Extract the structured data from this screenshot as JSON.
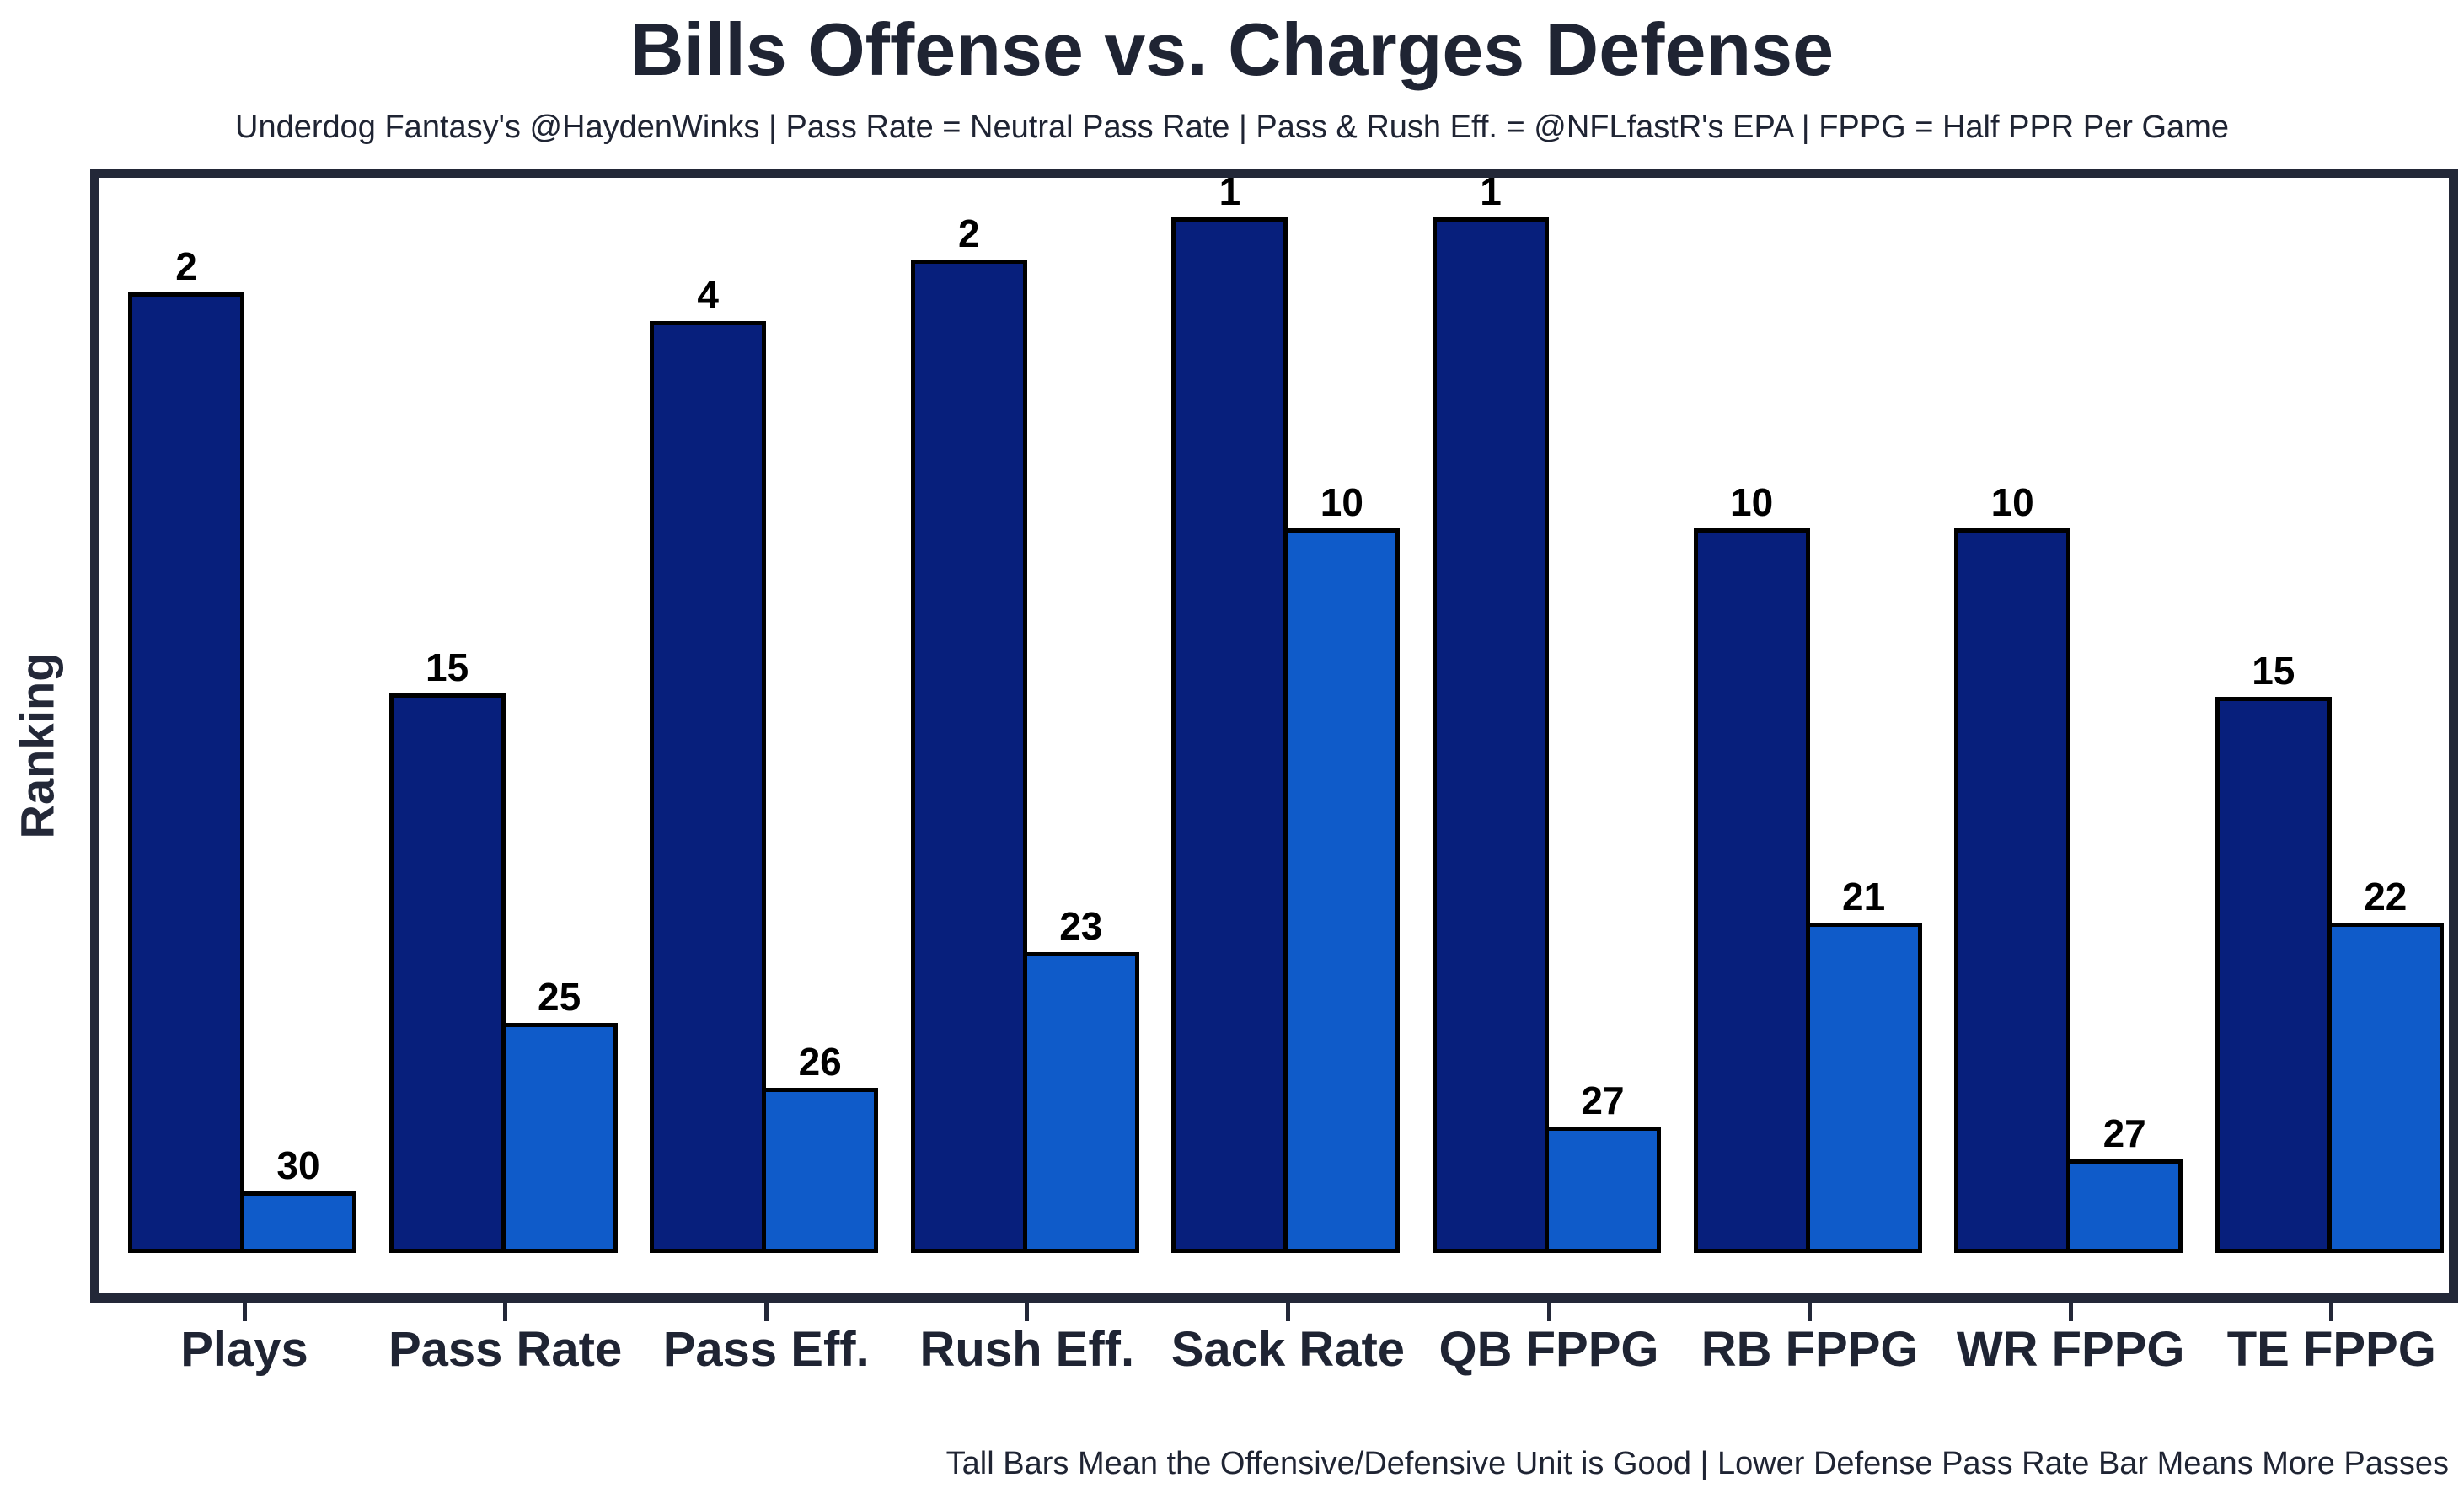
{
  "header": {
    "title": "Bills Offense vs. Charges Defense",
    "subtitle": "Underdog Fantasy's @HaydenWinks | Pass Rate = Neutral Pass Rate | Pass & Rush Eff. = @NFLfastR's EPA | FPPG = Half PPR Per Game"
  },
  "footer": {
    "caption": "Tall Bars Mean the Offensive/Defensive Unit is Good | Lower Defense Pass Rate Bar Means More Passes"
  },
  "chart_data": {
    "type": "bar",
    "title": "Bills Offense vs. Charges Defense",
    "ylabel": "Ranking",
    "xlabel": "",
    "grid": false,
    "legend": "none",
    "categories": [
      "Plays",
      "Pass Rate",
      "Pass Eff.",
      "Rush Eff.",
      "Sack Rate",
      "QB FPPG",
      "RB FPPG",
      "WR FPPG",
      "TE FPPG"
    ],
    "bar_labels_show": "league rank (1 = best); bar height reflects underlying stat value",
    "height_axis": {
      "units_at_rank_1": 32,
      "baseline_units": 0
    },
    "series": [
      {
        "name": "Bills Offense",
        "color": "#071F7C",
        "ranks": [
          2,
          15,
          4,
          2,
          1,
          1,
          10,
          10,
          15
        ],
        "height_units": [
          29.7,
          17.3,
          28.8,
          30.7,
          32,
          32,
          22.4,
          22.4,
          17.2
        ]
      },
      {
        "name": "Chargers Defense",
        "color": "#0F5BC9",
        "ranks": [
          30,
          25,
          26,
          23,
          10,
          27,
          21,
          27,
          22
        ],
        "height_units": [
          1.9,
          7.1,
          5.1,
          9.3,
          22.4,
          3.9,
          10.2,
          2.9,
          10.2
        ]
      }
    ]
  }
}
